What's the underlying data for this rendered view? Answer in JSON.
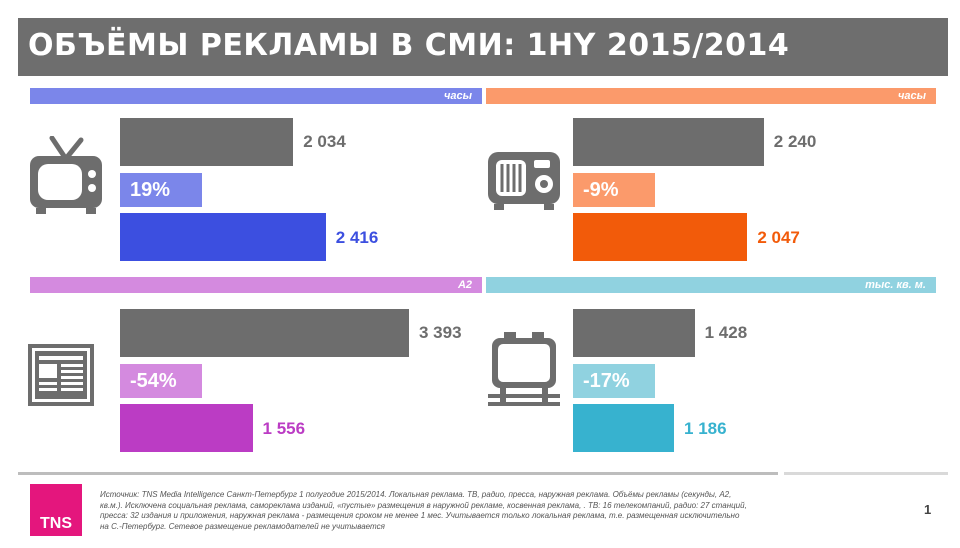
{
  "title": "ОБЪЁМЫ РЕКЛАМЫ В СМИ: 1HY 2015/2014",
  "colors": {
    "gray": "#6d6d6d",
    "tv": "#3c4fe0",
    "tv_light": "#7b86ea",
    "radio": "#f25b0a",
    "radio_light": "#fb9a6b",
    "press": "#bb3cc4",
    "press_light": "#d48adf",
    "outdoor": "#37b2cf",
    "outdoor_light": "#90d2e0"
  },
  "chart_data": [
    {
      "type": "bar",
      "id": "tv",
      "icon": "tv-icon",
      "unit": "часы",
      "values": {
        "y2014": 2034,
        "y2015": 2416
      },
      "labels": {
        "y2014": "2 034",
        "y2015": "2 416"
      },
      "change": "19%"
    },
    {
      "type": "bar",
      "id": "radio",
      "icon": "radio-icon",
      "unit": "часы",
      "values": {
        "y2014": 2240,
        "y2015": 2047
      },
      "labels": {
        "y2014": "2 240",
        "y2015": "2 047"
      },
      "change": "-9%"
    },
    {
      "type": "bar",
      "id": "press",
      "icon": "newspaper-icon",
      "unit": "А2",
      "values": {
        "y2014": 3393,
        "y2015": 1556
      },
      "labels": {
        "y2014": "3 393",
        "y2015": "1 556"
      },
      "change": "-54%"
    },
    {
      "type": "bar",
      "id": "outdoor",
      "icon": "billboard-icon",
      "unit": "тыс. кв. м.",
      "values": {
        "y2014": 1428,
        "y2015": 1186
      },
      "labels": {
        "y2014": "1 428",
        "y2015": "1 186"
      },
      "change": "-17%"
    }
  ],
  "footer": {
    "logo": "TNS",
    "source": "Источник: TNS Media Intelligence Санкт-Петербург 1 полугодие 2015/2014. Локальная реклама. ТВ, радио, пресса, наружная реклама. Объёмы рекламы (секунды, А2, кв.м.). Исключена социальная реклама, самореклама изданий, «пустые» размещения в наружной рекламе, косвенная реклама, . ТВ: 16 телекомпаний, радио: 27 станций, пресса: 32 издания и приложения, наружная реклама - размещения сроком не менее 1 мес. Учитывается только локальная реклама, т.е. размещенная исключительно на С.-Петербург. Сетевое размещение рекламодателей не учитывается",
    "page": "1"
  }
}
